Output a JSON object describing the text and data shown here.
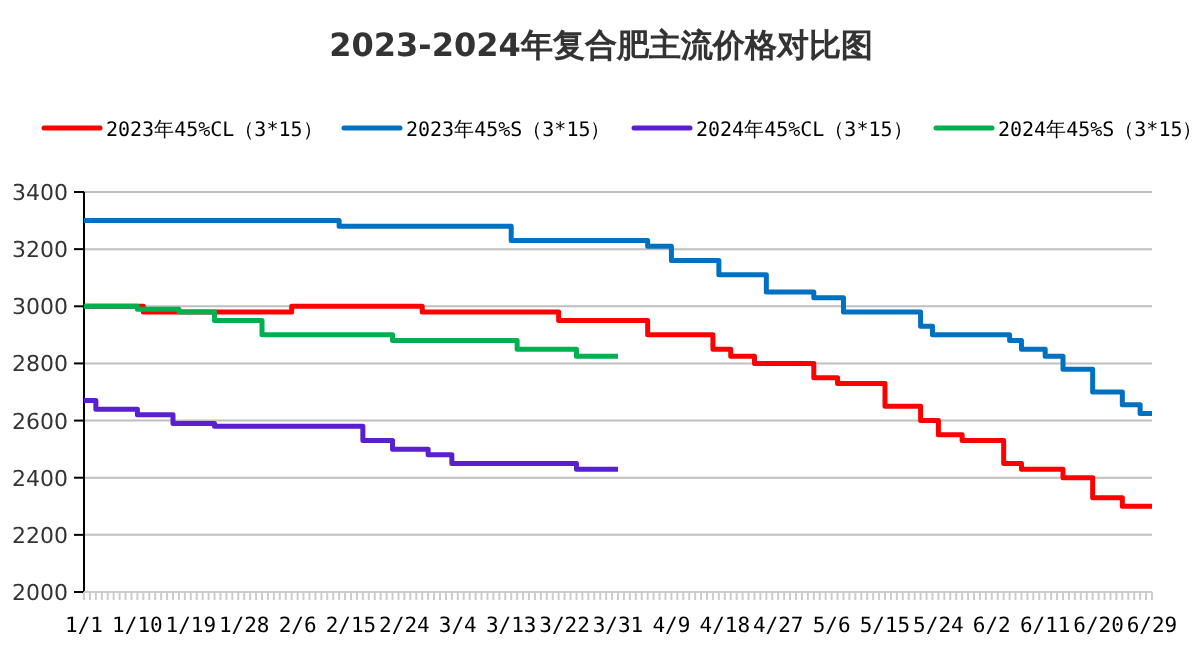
{
  "chart_data": {
    "type": "step",
    "title": "2023-2024年复合肥主流价格对比图",
    "legend": "top",
    "grid": "y",
    "xlim": [
      "2024-01-01",
      "2024-06-29"
    ],
    "ylim": [
      2000,
      3400
    ],
    "yticks": [
      2000,
      2200,
      2400,
      2600,
      2800,
      3000,
      3200,
      3400
    ],
    "xticks": [
      {
        "value": "2024-01-01",
        "label": "1/1"
      },
      {
        "value": "2024-01-10",
        "label": "1/10"
      },
      {
        "value": "2024-01-19",
        "label": "1/19"
      },
      {
        "value": "2024-01-28",
        "label": "1/28"
      },
      {
        "value": "2024-02-06",
        "label": "2/6"
      },
      {
        "value": "2024-02-15",
        "label": "2/15"
      },
      {
        "value": "2024-02-24",
        "label": "2/24"
      },
      {
        "value": "2024-03-04",
        "label": "3/4"
      },
      {
        "value": "2024-03-13",
        "label": "3/13"
      },
      {
        "value": "2024-03-22",
        "label": "3/22"
      },
      {
        "value": "2024-03-31",
        "label": "3/31"
      },
      {
        "value": "2024-04-09",
        "label": "4/9"
      },
      {
        "value": "2024-04-18",
        "label": "4/18"
      },
      {
        "value": "2024-04-27",
        "label": "4/27"
      },
      {
        "value": "2024-05-06",
        "label": "5/6"
      },
      {
        "value": "2024-05-15",
        "label": "5/15"
      },
      {
        "value": "2024-05-24",
        "label": "5/24"
      },
      {
        "value": "2024-06-02",
        "label": "6/2"
      },
      {
        "value": "2024-06-11",
        "label": "6/11"
      },
      {
        "value": "2024-06-20",
        "label": "6/20"
      },
      {
        "value": "2024-06-29",
        "label": "6/29"
      }
    ],
    "series": [
      {
        "name": "2023年45%CL（3*15）",
        "color": "#ff0000",
        "x": [
          "2024-01-01",
          "2024-01-11",
          "2024-02-05",
          "2024-02-27",
          "2024-03-21",
          "2024-04-05",
          "2024-04-16",
          "2024-04-19",
          "2024-04-23",
          "2024-05-03",
          "2024-05-07",
          "2024-05-15",
          "2024-05-21",
          "2024-05-24",
          "2024-05-28",
          "2024-06-04",
          "2024-06-07",
          "2024-06-14",
          "2024-06-19",
          "2024-06-24",
          "2024-06-29"
        ],
        "values": [
          3000,
          2980,
          3000,
          2980,
          2950,
          2900,
          2850,
          2825,
          2800,
          2750,
          2730,
          2650,
          2600,
          2550,
          2530,
          2450,
          2430,
          2400,
          2330,
          2300,
          2300
        ]
      },
      {
        "name": "2023年45%S（3*15）",
        "color": "#0070c0",
        "x": [
          "2024-01-01",
          "2024-02-13",
          "2024-03-13",
          "2024-04-05",
          "2024-04-09",
          "2024-04-17",
          "2024-04-25",
          "2024-05-03",
          "2024-05-08",
          "2024-05-21",
          "2024-05-23",
          "2024-06-05",
          "2024-06-07",
          "2024-06-11",
          "2024-06-14",
          "2024-06-19",
          "2024-06-24",
          "2024-06-27",
          "2024-06-29"
        ],
        "values": [
          3300,
          3280,
          3230,
          3210,
          3160,
          3110,
          3050,
          3030,
          2980,
          2930,
          2900,
          2880,
          2850,
          2825,
          2780,
          2700,
          2655,
          2625,
          2625
        ]
      },
      {
        "name": "2024年45%CL（3*15）",
        "color": "#5a1fcf",
        "x": [
          "2024-01-01",
          "2024-01-03",
          "2024-01-10",
          "2024-01-16",
          "2024-01-23",
          "2024-02-17",
          "2024-02-22",
          "2024-02-28",
          "2024-03-03",
          "2024-03-24",
          "2024-03-31"
        ],
        "values": [
          2670,
          2640,
          2620,
          2590,
          2580,
          2530,
          2500,
          2480,
          2450,
          2430,
          2430
        ]
      },
      {
        "name": "2024年45%S（3*15）",
        "color": "#00b050",
        "x": [
          "2024-01-01",
          "2024-01-10",
          "2024-01-17",
          "2024-01-23",
          "2024-01-31",
          "2024-02-22",
          "2024-03-14",
          "2024-03-24",
          "2024-03-31"
        ],
        "values": [
          3000,
          2990,
          2980,
          2950,
          2900,
          2880,
          2850,
          2825,
          2825
        ]
      }
    ]
  }
}
